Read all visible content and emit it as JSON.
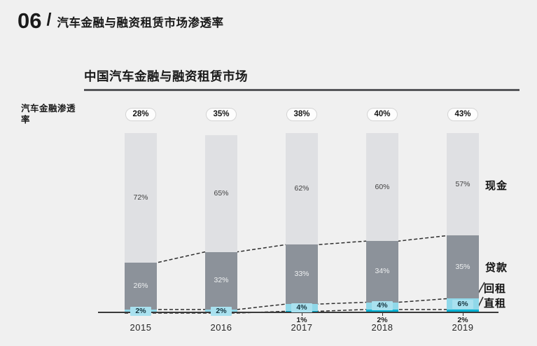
{
  "header": {
    "number": "06",
    "divider": "/",
    "title": "汽车金融与融资租赁市场渗透率"
  },
  "chart_data": {
    "type": "bar",
    "stacked": true,
    "title": "中国汽车金融与融资租赁市场",
    "ylabel": "汽车金融渗透率",
    "categories": [
      "2015",
      "2016",
      "2017",
      "2018",
      "2019"
    ],
    "penetration_badges": [
      "28%",
      "35%",
      "38%",
      "40%",
      "43%"
    ],
    "stack_bottom_to_top": [
      "直租",
      "回租",
      "贷款",
      "现金"
    ],
    "series": [
      {
        "name": "现金",
        "slug": "cash",
        "color": "#dfe0e3",
        "values": [
          72,
          65,
          62,
          60,
          57
        ],
        "labels": [
          "72%",
          "65%",
          "62%",
          "60%",
          "57%"
        ],
        "label_placement": "inside",
        "label_color": "#3f3f3f"
      },
      {
        "name": "贷款",
        "slug": "loan",
        "color": "#8c929a",
        "values": [
          26,
          32,
          33,
          34,
          35
        ],
        "labels": [
          "26%",
          "32%",
          "33%",
          "34%",
          "35%"
        ],
        "label_placement": "inside",
        "label_color": "#eef0f1"
      },
      {
        "name": "回租",
        "slug": "sale-leaseback",
        "color": "#90d8e9",
        "values": [
          2,
          2,
          4,
          4,
          6
        ],
        "labels": [
          "2%",
          "2%",
          "4%",
          "4%",
          "6%"
        ],
        "label_placement": "chip",
        "label_color": "#15333d",
        "chip_color": "#a9e1ef"
      },
      {
        "name": "直租",
        "slug": "direct-lease",
        "color": "#00b1d3",
        "values": [
          0,
          0,
          1,
          2,
          2
        ],
        "labels": [
          "",
          "",
          "1%",
          "2%",
          "2%"
        ],
        "label_placement": "below-axis",
        "label_color": "#1c1c1c"
      }
    ],
    "legend": [
      "现金",
      "贷款",
      "回租",
      "直租"
    ],
    "legend_position": "right",
    "ylim": [
      0,
      100
    ],
    "grid": false,
    "annotations": "dashed trend lines connect stacked segment boundaries across bars; badges above bars show total finance penetration"
  }
}
